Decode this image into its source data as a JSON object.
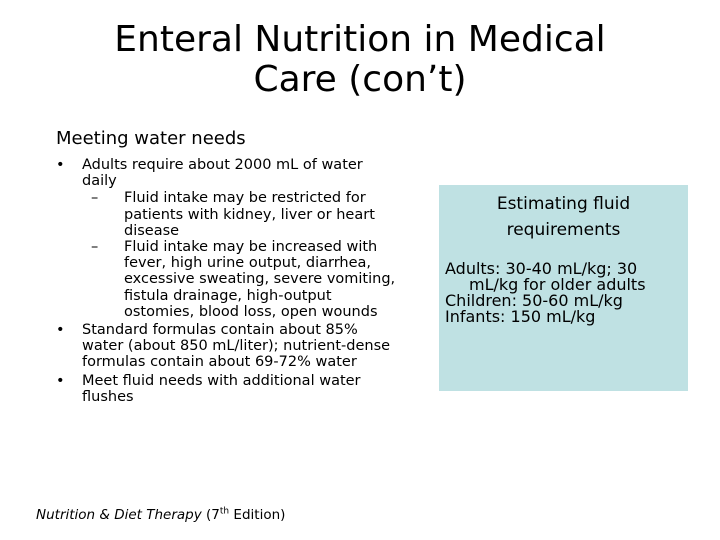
{
  "slide": {
    "title_line1": "Enteral Nutrition in Medical",
    "title_line2": "Care (con’t)",
    "subheading": "Meeting water needs"
  },
  "bullets": {
    "b1_text": "Adults require about 2000 mL of water daily",
    "b1_sub1": "Fluid intake may be restricted for patients with kidney, liver or heart disease",
    "b1_sub2": "Fluid intake may be increased with fever, high urine output, diarrhea, excessive sweating, severe vomiting, fistula drainage, high-output ostomies, blood loss, open wounds",
    "b2_text": "Standard formulas contain about 85% water (about 850 mL/liter); nutrient-dense formulas contain about 69-72% water",
    "b3_text": "Meet fluid needs with additional water flushes",
    "bullet_glyph": "•",
    "dash_glyph": "–"
  },
  "sidebox": {
    "heading_line1": "Estimating fluid",
    "heading_line2": "requirements",
    "adults": "Adults: 30-40 mL/kg; 30 mL/kg for older adults",
    "children": "Children: 50-60 mL/kg",
    "infants": "Infants: 150 mL/kg",
    "background_color": "#bfe1e3"
  },
  "footer": {
    "book_title": "Nutrition & Diet Therapy",
    "edition_open": " (7",
    "edition_sup": "th",
    "edition_close": " Edition)"
  }
}
